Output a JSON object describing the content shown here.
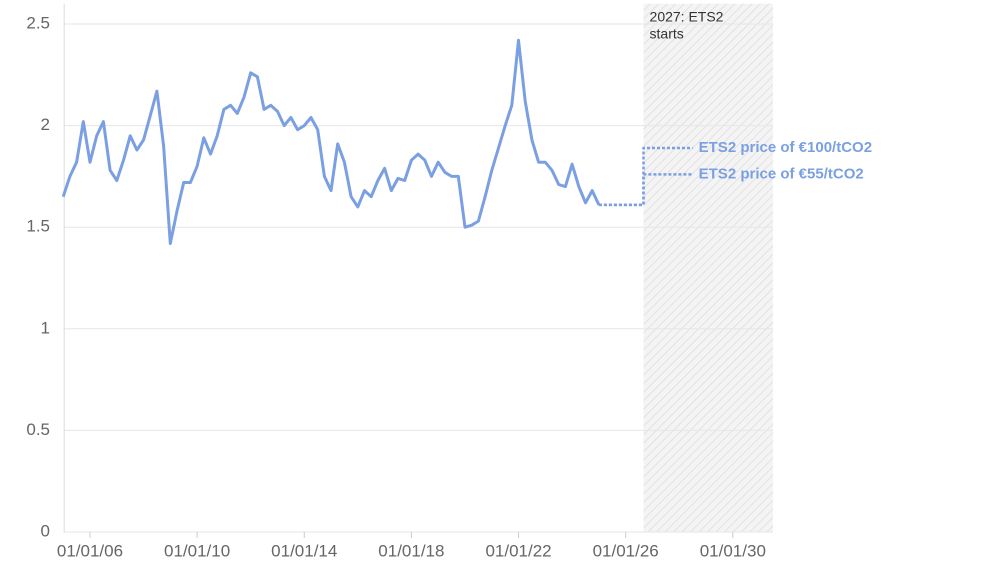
{
  "chart_data": {
    "type": "line",
    "x": [
      "2005-01-01",
      "2005-04-01",
      "2005-07-01",
      "2005-10-01",
      "2006-01-01",
      "2006-04-01",
      "2006-07-01",
      "2006-10-01",
      "2007-01-01",
      "2007-04-01",
      "2007-07-01",
      "2007-10-01",
      "2008-01-01",
      "2008-04-01",
      "2008-07-01",
      "2008-10-01",
      "2009-01-01",
      "2009-04-01",
      "2009-07-01",
      "2009-10-01",
      "2010-01-01",
      "2010-04-01",
      "2010-07-01",
      "2010-10-01",
      "2011-01-01",
      "2011-04-01",
      "2011-07-01",
      "2011-10-01",
      "2012-01-01",
      "2012-04-01",
      "2012-07-01",
      "2012-10-01",
      "2013-01-01",
      "2013-04-01",
      "2013-07-01",
      "2013-10-01",
      "2014-01-01",
      "2014-04-01",
      "2014-07-01",
      "2014-10-01",
      "2015-01-01",
      "2015-04-01",
      "2015-07-01",
      "2015-10-01",
      "2016-01-01",
      "2016-04-01",
      "2016-07-01",
      "2016-10-01",
      "2017-01-01",
      "2017-04-01",
      "2017-07-01",
      "2017-10-01",
      "2018-01-01",
      "2018-04-01",
      "2018-07-01",
      "2018-10-01",
      "2019-01-01",
      "2019-04-01",
      "2019-07-01",
      "2019-10-01",
      "2020-01-01",
      "2020-04-01",
      "2020-07-01",
      "2020-10-01",
      "2021-01-01",
      "2021-04-01",
      "2021-07-01",
      "2021-10-01",
      "2022-01-01",
      "2022-04-01",
      "2022-07-01",
      "2022-10-01",
      "2023-01-01",
      "2023-04-01",
      "2023-07-01",
      "2023-10-01",
      "2024-01-01",
      "2024-04-01",
      "2024-07-01",
      "2024-10-01",
      "2025-01-01"
    ],
    "series": [
      {
        "color": "#7b9fe3",
        "values": [
          1.65,
          1.75,
          1.82,
          2.02,
          1.82,
          1.95,
          2.02,
          1.78,
          1.73,
          1.83,
          1.95,
          1.88,
          1.93,
          2.05,
          2.17,
          1.9,
          1.42,
          1.58,
          1.72,
          1.72,
          1.8,
          1.94,
          1.86,
          1.95,
          2.08,
          2.1,
          2.06,
          2.14,
          2.26,
          2.24,
          2.08,
          2.1,
          2.07,
          2.0,
          2.04,
          1.98,
          2.0,
          2.04,
          1.98,
          1.75,
          1.68,
          1.91,
          1.82,
          1.65,
          1.6,
          1.68,
          1.65,
          1.73,
          1.79,
          1.68,
          1.74,
          1.73,
          1.83,
          1.86,
          1.83,
          1.75,
          1.82,
          1.77,
          1.75,
          1.75,
          1.5,
          1.51,
          1.53,
          1.65,
          1.78,
          1.89,
          2.0,
          2.1,
          2.42,
          2.12,
          1.93,
          1.82,
          1.82,
          1.78,
          1.71,
          1.7,
          1.81,
          1.7,
          1.62,
          1.68,
          1.61
        ]
      },
      {
        "name": "ETS2 price of €100/tCO2",
        "color": "#7b9fe3",
        "dashed": true,
        "x": [
          "2025-01-01",
          "2026-09-01",
          "2026-09-01",
          "2028-07-01"
        ],
        "values": [
          1.61,
          1.61,
          1.89,
          1.89
        ]
      },
      {
        "name": "ETS2 price of €55/tCO2",
        "color": "#7b9fe3",
        "dashed": true,
        "x": [
          "2025-01-01",
          "2026-09-01",
          "2026-09-01",
          "2028-07-01"
        ],
        "values": [
          1.61,
          1.61,
          1.76,
          1.76
        ]
      }
    ],
    "xlim": [
      "2005-01-01",
      "2031-07-01"
    ],
    "xticks": [
      {
        "value": "2006-01-01",
        "label": "01/01/06"
      },
      {
        "value": "2010-01-01",
        "label": "01/01/10"
      },
      {
        "value": "2014-01-01",
        "label": "01/01/14"
      },
      {
        "value": "2018-01-01",
        "label": "01/01/18"
      },
      {
        "value": "2022-01-01",
        "label": "01/01/22"
      },
      {
        "value": "2026-01-01",
        "label": "01/01/26"
      },
      {
        "value": "2030-01-01",
        "label": "01/01/30"
      }
    ],
    "ylim": [
      0,
      2.6
    ],
    "yticks": [
      0,
      0.5,
      1,
      1.5,
      2,
      2.5
    ],
    "grid": true,
    "annotation": {
      "text": [
        "2027: ETS2",
        "starts"
      ],
      "x_start": "2026-09-01"
    }
  }
}
